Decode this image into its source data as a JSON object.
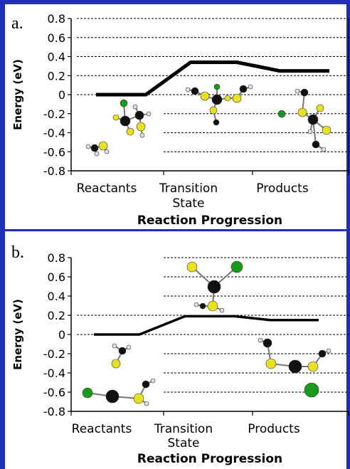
{
  "chart_data": [
    {
      "type": "line",
      "panel_label": "a.",
      "ylabel": "Energy (eV)",
      "xlabel": "Reaction Progression",
      "categories": [
        "Reactants",
        "Transition\nState",
        "Products"
      ],
      "x_category_lines": [
        "Reactants",
        "Transition",
        "State",
        "Products"
      ],
      "ylim": [
        -0.8,
        0.8
      ],
      "yticks": [
        "0.8",
        "0.6",
        "0.4",
        "0.2",
        "0",
        "-0.2",
        "-0.4",
        "-0.6",
        "-0.8"
      ],
      "ytick_values": [
        0.8,
        0.6,
        0.4,
        0.2,
        0,
        -0.2,
        -0.4,
        -0.6,
        -0.8
      ],
      "grid": "dashed horizontal",
      "values": [
        0.0,
        0.34,
        0.25
      ]
    },
    {
      "type": "line",
      "panel_label": "b.",
      "ylabel": "Energy (eV)",
      "xlabel": "Reaction Progression",
      "categories": [
        "Reactants",
        "Transition\nState",
        "Products"
      ],
      "x_category_lines": [
        "Reactants",
        "Transition",
        "State",
        "Products"
      ],
      "ylim": [
        -0.8,
        0.8
      ],
      "yticks": [
        "0.8",
        "0.6",
        "0.4",
        "0.2",
        "0",
        "-0.2",
        "-0.4",
        "-0.6",
        "-0.8"
      ],
      "ytick_values": [
        0.8,
        0.6,
        0.4,
        0.2,
        0,
        -0.2,
        -0.4,
        -0.6,
        -0.8
      ],
      "grid": "dashed horizontal",
      "values": [
        0.0,
        0.19,
        0.15
      ]
    }
  ],
  "colors": {
    "frame": "#1f2fb8",
    "line": "#000000",
    "sulfur": "#e8e020",
    "chlorine": "#1a9a1a",
    "carbon": "#111111",
    "hydrogen": "#e0e0e0"
  }
}
